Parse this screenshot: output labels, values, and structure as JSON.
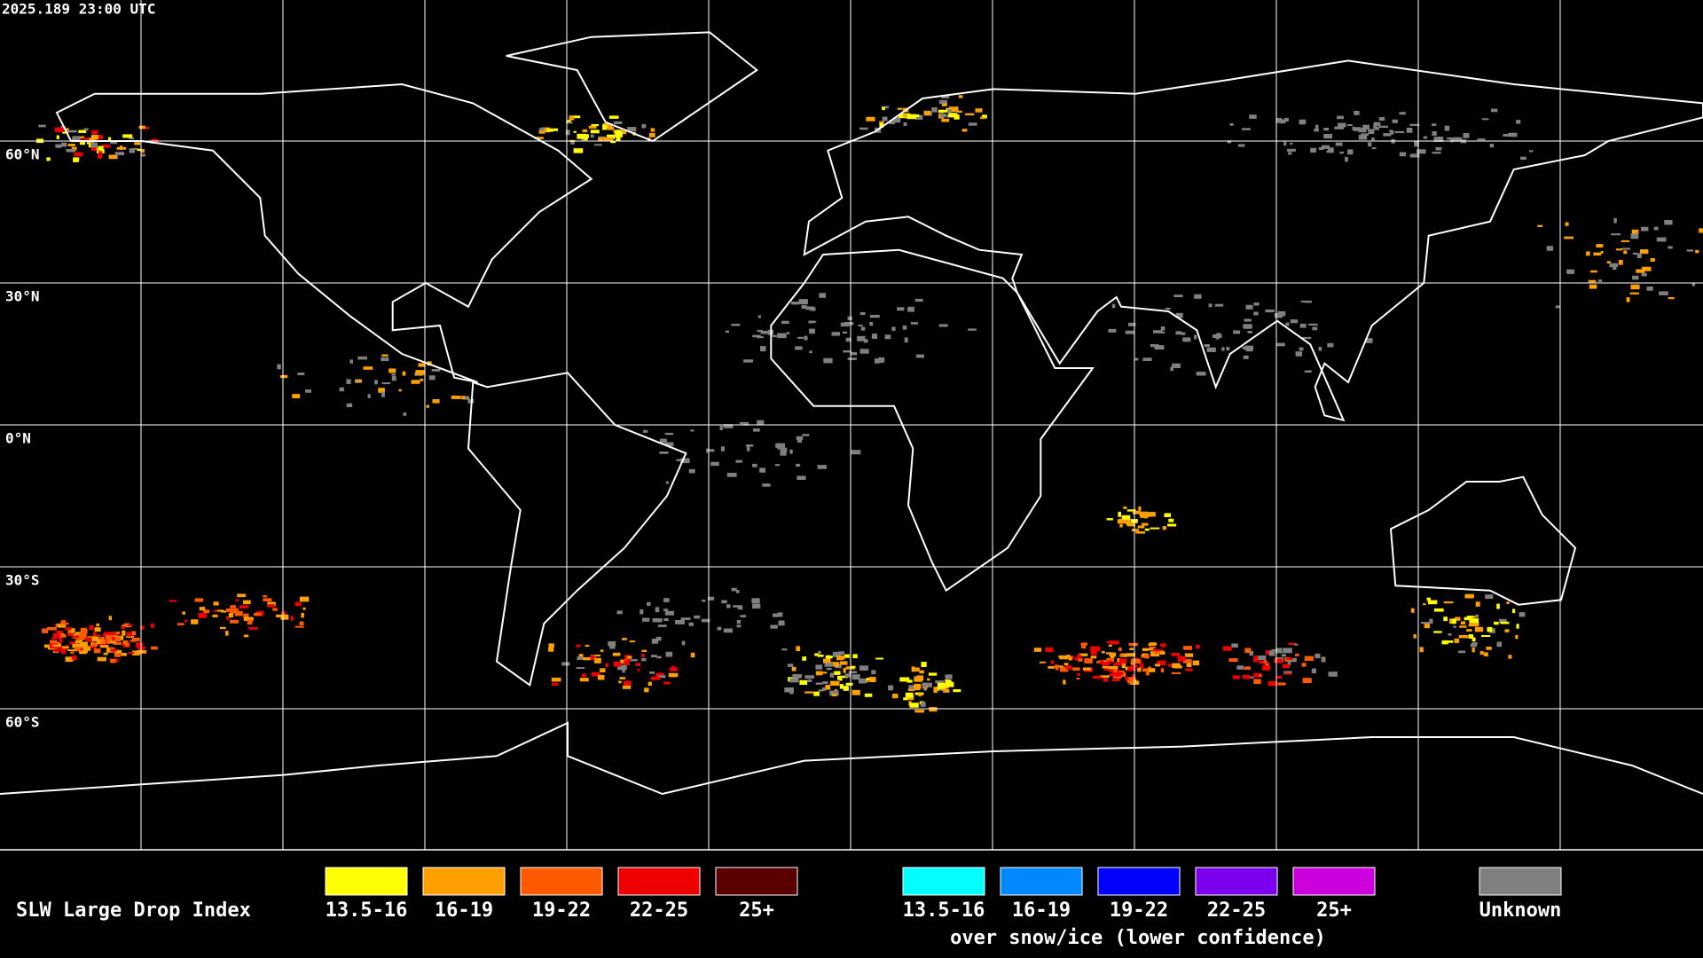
{
  "header": {
    "timestamp": "2025.189 23:00 UTC"
  },
  "grid_labels": [
    "60°N",
    "30°N",
    "0°N",
    "30°S",
    "60°S"
  ],
  "legend": {
    "title": "SLW Large Drop Index",
    "groups": [
      {
        "items": [
          {
            "label": "13.5-16",
            "color": "#ffff00"
          },
          {
            "label": "16-19",
            "color": "#ffa000"
          },
          {
            "label": "19-22",
            "color": "#ff5a00"
          },
          {
            "label": "22-25",
            "color": "#ee0000"
          },
          {
            "label": "25+",
            "color": "#5a0000"
          }
        ]
      },
      {
        "items": [
          {
            "label": "13.5-16",
            "color": "#00ffff"
          },
          {
            "label": "16-19",
            "color": "#0088ff"
          },
          {
            "label": "19-22",
            "color": "#0000ff"
          },
          {
            "label": "22-25",
            "color": "#7a00ee"
          },
          {
            "label": "25+",
            "color": "#cc00dd"
          }
        ],
        "caption": "over snow/ice (lower confidence)"
      }
    ],
    "unknown": {
      "label": "Unknown",
      "color": "#808080"
    }
  }
}
